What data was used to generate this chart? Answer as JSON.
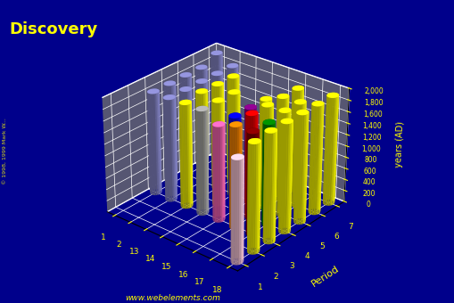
{
  "title": "Discovery",
  "ylabel": "years (AD)",
  "period_label": "Period",
  "background_color": "#00008B",
  "floor_color": "#606070",
  "title_color": "#FFFF00",
  "axis_label_color": "#FFFF00",
  "tick_color": "#FFFF00",
  "website": "www.webelements.com",
  "copyright": "© 1998, 1999 Mark W...",
  "groups": [
    1,
    2,
    13,
    14,
    15,
    16,
    17,
    18
  ],
  "periods": [
    1,
    2,
    3,
    4,
    5,
    6,
    7
  ],
  "data": {
    "1": [
      0,
      0,
      0,
      0,
      0,
      0,
      0,
      1766
    ],
    "2": [
      0,
      0,
      0,
      0,
      0,
      0,
      0,
      1868
    ],
    "3": [
      1807,
      1808,
      1825,
      1824,
      1669,
      1774,
      1774,
      1894
    ],
    "4": [
      1807,
      1808,
      1875,
      1824,
      1669,
      1817,
      1774,
      1898
    ],
    "5": [
      1817,
      1808,
      1863,
      1824,
      1669,
      1817,
      1826,
      1898
    ],
    "6": [
      1817,
      1808,
      1861,
      0,
      1669,
      1817,
      1826,
      1900
    ],
    "7": [
      1939,
      1808,
      0,
      0,
      0,
      1817,
      0,
      1900
    ]
  },
  "bar_colors": {
    "1": [
      "#FFFF00",
      "#FFFF00",
      "#FFFF00",
      "#FFFF00",
      "#FFFF00",
      "#FFFF00",
      "#FFFF00",
      "#FFCCDD"
    ],
    "2": [
      "#FFFF00",
      "#FFFF00",
      "#FFFF00",
      "#FFFF00",
      "#FFFF00",
      "#FFFF00",
      "#FFFF00",
      "#FFFF00"
    ],
    "3": [
      "#8888CC",
      "#8888CC",
      "#FFFF00",
      "#AAAAAA",
      "#FF66BB",
      "#FF8800",
      "#880000",
      "#FFFF00"
    ],
    "4": [
      "#8888CC",
      "#8888CC",
      "#FFFF00",
      "#FFFF00",
      "#0000EE",
      "#EE0000",
      "#008800",
      "#FFFF00"
    ],
    "5": [
      "#8888CC",
      "#8888CC",
      "#FFFF00",
      "#FFFF00",
      "#880088",
      "#FFFF00",
      "#FFFF00",
      "#FFFF00"
    ],
    "6": [
      "#8888CC",
      "#8888CC",
      "#FFFF00",
      "#FFFF00",
      "#FFFF00",
      "#FFFF00",
      "#FFFF00",
      "#FFFF00"
    ],
    "7": [
      "#8888CC",
      "#8888CC",
      "#FFFF00",
      "#FFFF00",
      "#FFFF00",
      "#FFFF00",
      "#FFFF00",
      "#FFFF00"
    ]
  },
  "zlim": [
    0,
    2000
  ],
  "zticks": [
    0,
    200,
    400,
    600,
    800,
    1000,
    1200,
    1400,
    1600,
    1800,
    2000
  ],
  "figsize": [
    5.1,
    3.4
  ],
  "dpi": 100,
  "elev": 28,
  "azim": -50
}
